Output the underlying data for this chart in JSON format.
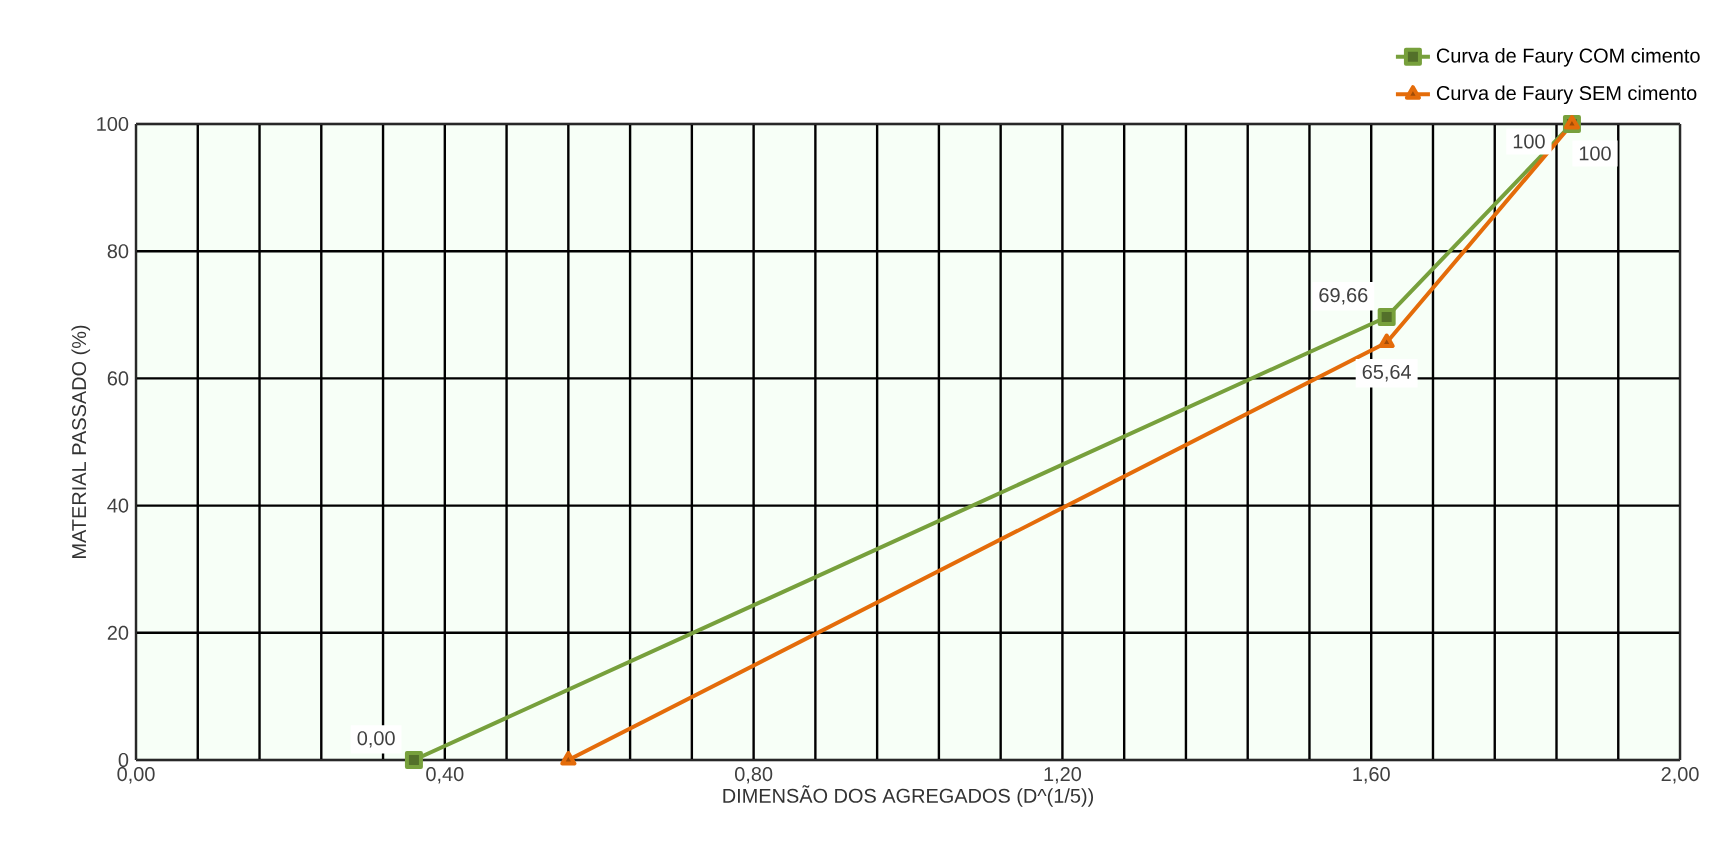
{
  "chart_data": {
    "type": "line",
    "xlabel": "DIMENSÃO DOS AGREGADOS (D^(1/5))",
    "ylabel": "MATERIAL PASSADO (%)",
    "xlim": [
      0,
      2
    ],
    "ylim": [
      0,
      100
    ],
    "xticks": [
      {
        "value": 0,
        "label": "0,00"
      },
      {
        "value": 0.08,
        "label": null
      },
      {
        "value": 0.16,
        "label": null
      },
      {
        "value": 0.24,
        "label": null
      },
      {
        "value": 0.32,
        "label": null
      },
      {
        "value": 0.4,
        "label": "0,40"
      },
      {
        "value": 0.48,
        "label": null
      },
      {
        "value": 0.56,
        "label": null
      },
      {
        "value": 0.64,
        "label": null
      },
      {
        "value": 0.72,
        "label": null
      },
      {
        "value": 0.8,
        "label": "0,80"
      },
      {
        "value": 0.88,
        "label": null
      },
      {
        "value": 0.96,
        "label": null
      },
      {
        "value": 1.04,
        "label": null
      },
      {
        "value": 1.12,
        "label": null
      },
      {
        "value": 1.2,
        "label": "1,20"
      },
      {
        "value": 1.28,
        "label": null
      },
      {
        "value": 1.36,
        "label": null
      },
      {
        "value": 1.44,
        "label": null
      },
      {
        "value": 1.52,
        "label": null
      },
      {
        "value": 1.6,
        "label": "1,60"
      },
      {
        "value": 1.68,
        "label": null
      },
      {
        "value": 1.76,
        "label": null
      },
      {
        "value": 1.84,
        "label": null
      },
      {
        "value": 1.92,
        "label": null
      },
      {
        "value": 2,
        "label": "2,00"
      }
    ],
    "yticks": [
      0,
      20,
      40,
      60,
      80,
      100
    ],
    "grid": true,
    "legend": "top right",
    "line_style": "solid",
    "series": [
      {
        "name": "Curva de Faury COM cimento",
        "color": "#77a03c",
        "marker": "square",
        "x": [
          0.36,
          1.62,
          1.86
        ],
        "values": [
          0,
          69.66,
          100
        ],
        "value_labels": [
          "0,00",
          "69,66",
          "100"
        ]
      },
      {
        "name": "Curva de Faury SEM cimento",
        "color": "#e46c0a",
        "marker": "triangle",
        "x": [
          0.56,
          1.62,
          1.86
        ],
        "values": [
          0,
          65.64,
          100
        ],
        "value_labels": [
          null,
          "65,64",
          "100"
        ]
      }
    ]
  }
}
